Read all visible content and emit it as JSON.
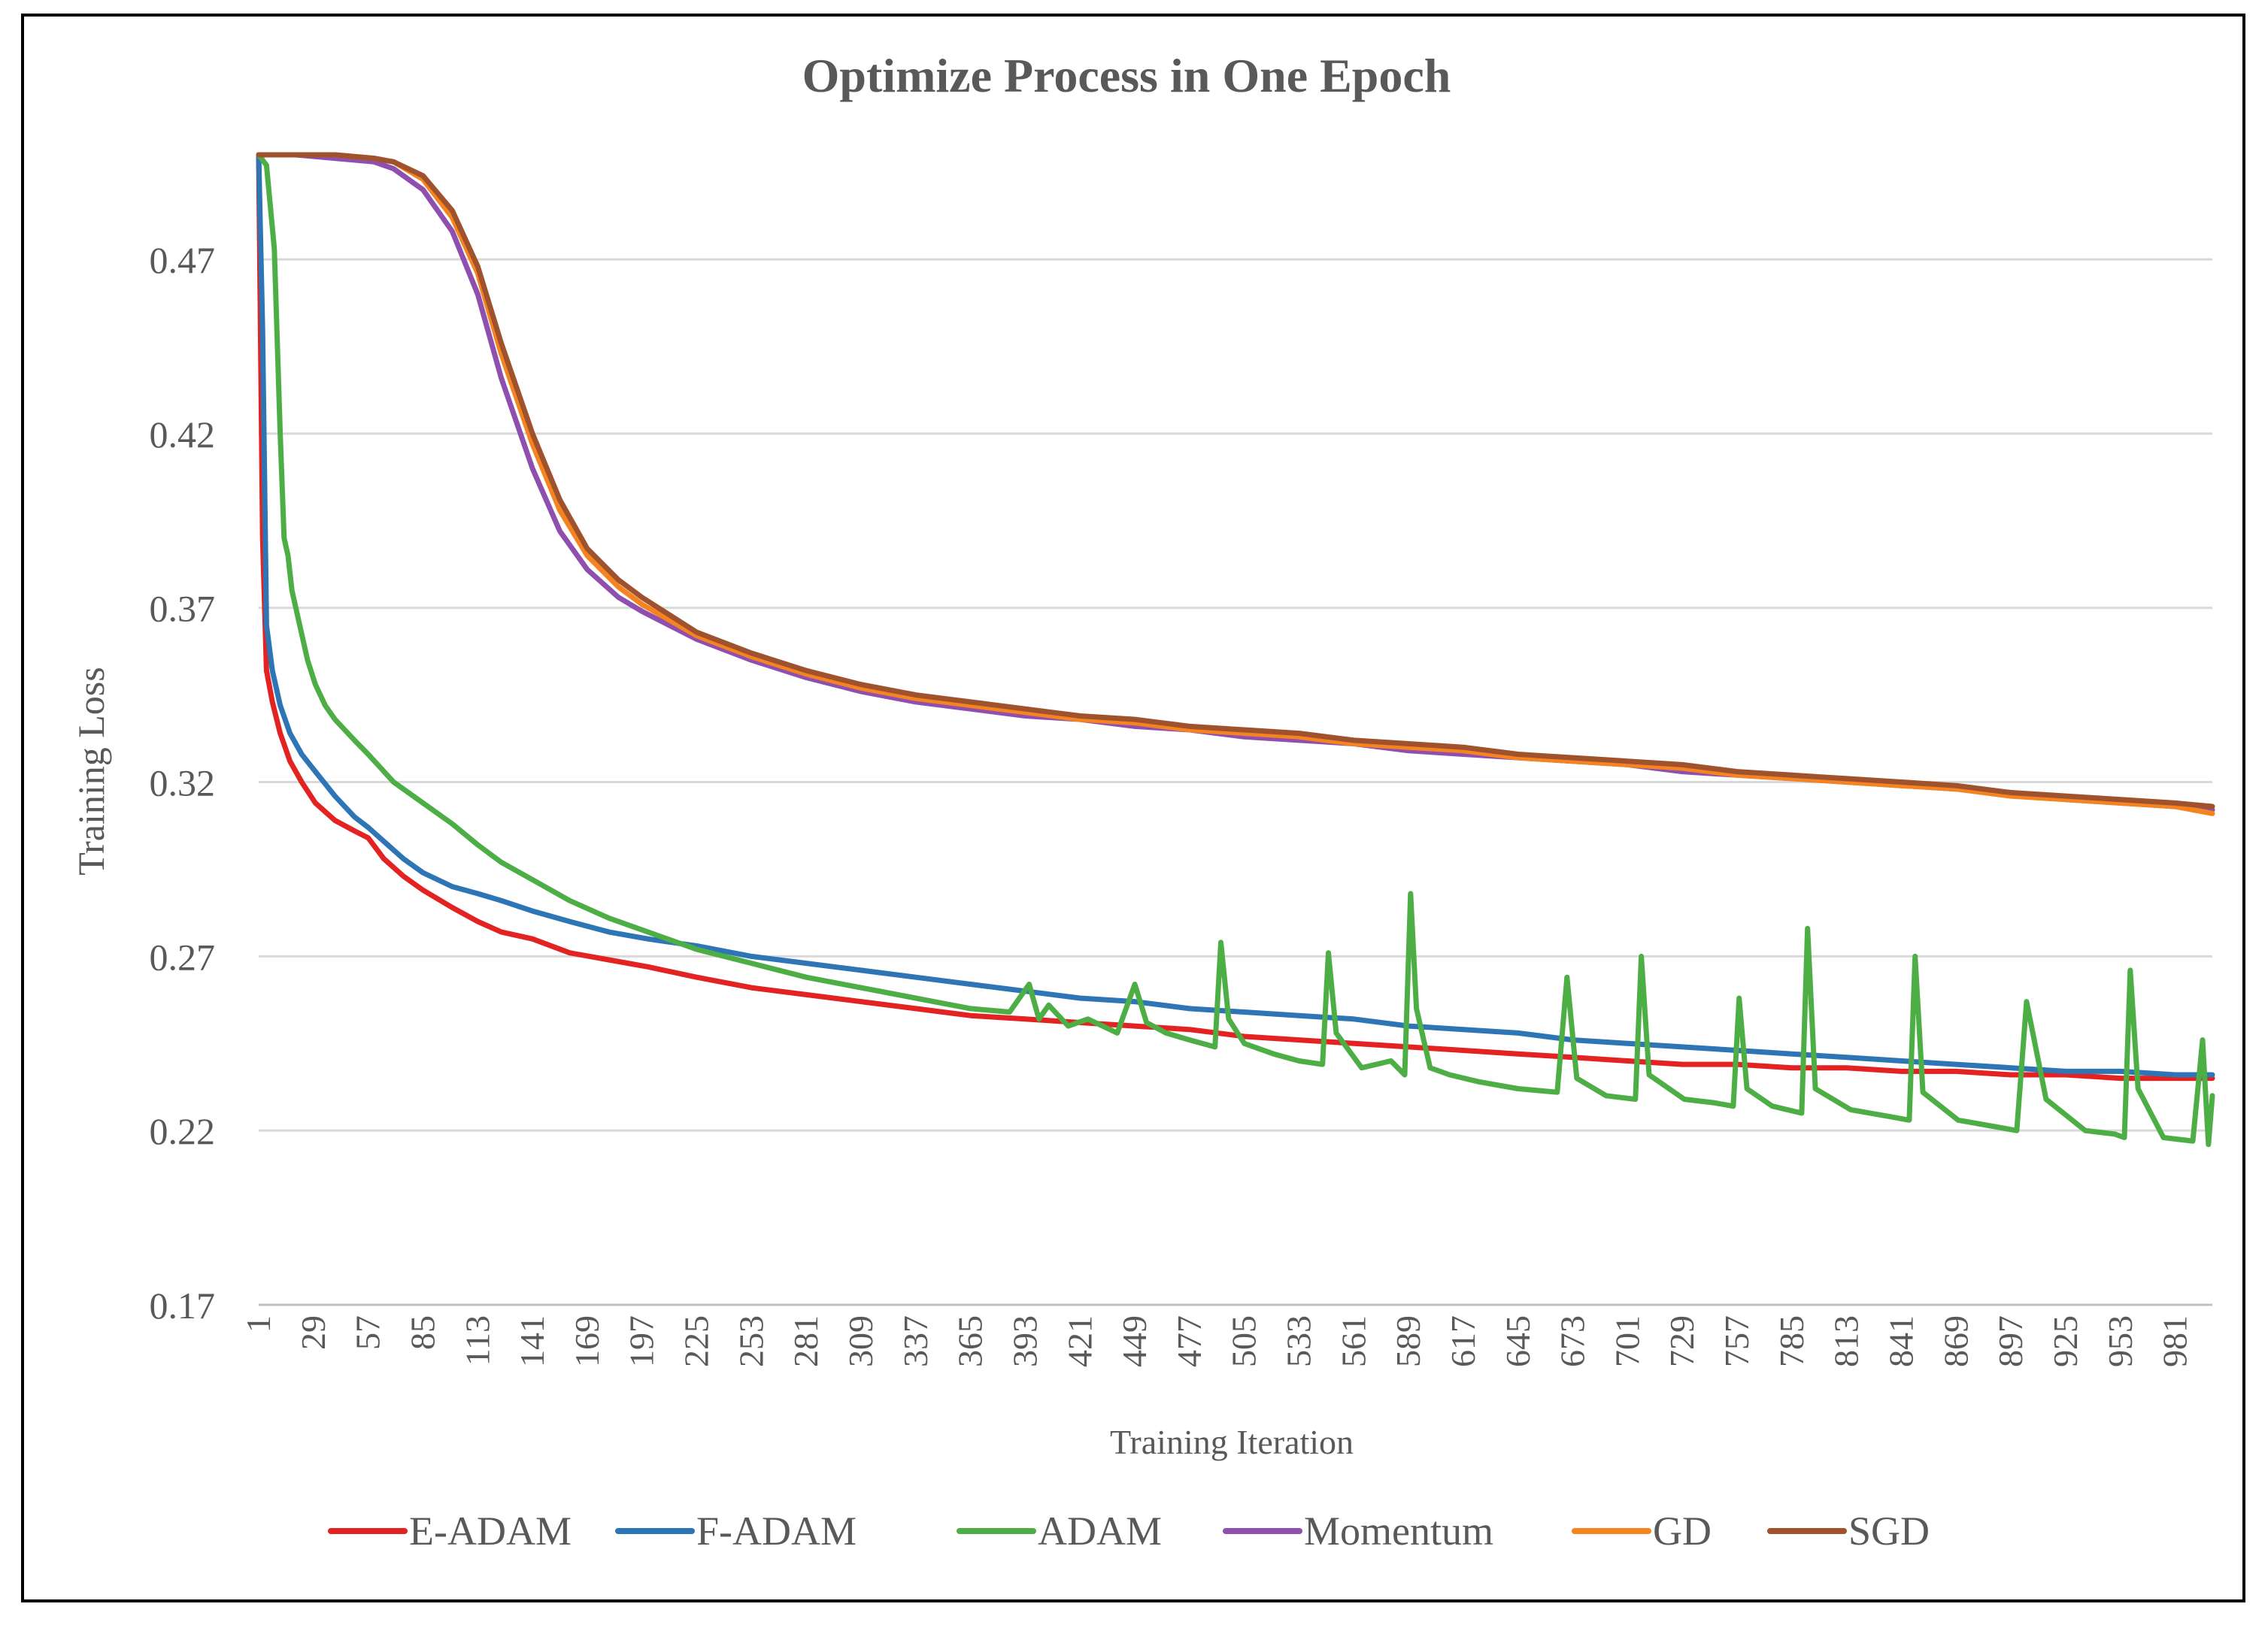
{
  "chart_data": {
    "type": "line",
    "title": "Optimize Process in One Epoch",
    "xlabel": "Training Iteration",
    "ylabel": "Training Loss",
    "ylim": [
      0.17,
      0.5
    ],
    "yticks": [
      "0.47",
      "0.42",
      "0.37",
      "0.32",
      "0.27",
      "0.22",
      "0.17"
    ],
    "xlim": [
      1,
      1000
    ],
    "xticks": [
      "1",
      "29",
      "57",
      "85",
      "113",
      "141",
      "169",
      "197",
      "225",
      "253",
      "281",
      "309",
      "337",
      "365",
      "393",
      "421",
      "449",
      "477",
      "505",
      "533",
      "561",
      "589",
      "617",
      "645",
      "673",
      "701",
      "729",
      "757",
      "785",
      "813",
      "841",
      "869",
      "897",
      "925",
      "953",
      "981"
    ],
    "legend_position": "bottom",
    "series": [
      {
        "name": "E-ADAM",
        "color": "#e32222",
        "x": [
          1,
          3,
          5,
          8,
          12,
          17,
          23,
          30,
          40,
          50,
          57,
          65,
          75,
          85,
          100,
          113,
          125,
          141,
          160,
          180,
          200,
          225,
          253,
          281,
          309,
          337,
          365,
          393,
          421,
          449,
          477,
          505,
          533,
          561,
          589,
          617,
          645,
          673,
          701,
          729,
          757,
          785,
          813,
          841,
          869,
          897,
          925,
          953,
          981,
          1000
        ],
        "y": [
          0.5,
          0.39,
          0.352,
          0.343,
          0.334,
          0.326,
          0.32,
          0.314,
          0.309,
          0.306,
          0.304,
          0.298,
          0.293,
          0.289,
          0.284,
          0.28,
          0.277,
          0.275,
          0.271,
          0.269,
          0.267,
          0.264,
          0.261,
          0.259,
          0.257,
          0.255,
          0.253,
          0.252,
          0.251,
          0.25,
          0.249,
          0.247,
          0.246,
          0.245,
          0.244,
          0.243,
          0.242,
          0.241,
          0.24,
          0.239,
          0.239,
          0.238,
          0.238,
          0.237,
          0.237,
          0.236,
          0.236,
          0.235,
          0.235,
          0.235
        ]
      },
      {
        "name": "F-ADAM",
        "color": "#2e75b6",
        "x": [
          1,
          3,
          5,
          8,
          12,
          17,
          23,
          30,
          40,
          50,
          57,
          65,
          75,
          85,
          100,
          113,
          125,
          141,
          160,
          180,
          200,
          225,
          253,
          281,
          309,
          337,
          365,
          393,
          421,
          449,
          477,
          505,
          533,
          561,
          589,
          617,
          645,
          673,
          701,
          729,
          757,
          785,
          813,
          841,
          869,
          897,
          925,
          953,
          981,
          1000
        ],
        "y": [
          0.5,
          0.45,
          0.365,
          0.352,
          0.342,
          0.334,
          0.328,
          0.323,
          0.316,
          0.31,
          0.307,
          0.303,
          0.298,
          0.294,
          0.29,
          0.288,
          0.286,
          0.283,
          0.28,
          0.277,
          0.275,
          0.273,
          0.27,
          0.268,
          0.266,
          0.264,
          0.262,
          0.26,
          0.258,
          0.257,
          0.255,
          0.254,
          0.253,
          0.252,
          0.25,
          0.249,
          0.248,
          0.246,
          0.245,
          0.244,
          0.243,
          0.242,
          0.241,
          0.24,
          0.239,
          0.238,
          0.237,
          0.237,
          0.236,
          0.236
        ]
      },
      {
        "name": "ADAM",
        "color": "#4eae46",
        "x": [
          1,
          5,
          9,
          12,
          14,
          16,
          18,
          22,
          26,
          30,
          35,
          40,
          50,
          57,
          70,
          85,
          100,
          113,
          125,
          141,
          160,
          180,
          200,
          225,
          253,
          281,
          309,
          337,
          365,
          385,
          395,
          400,
          405,
          415,
          425,
          440,
          449,
          455,
          465,
          477,
          490,
          493,
          497,
          505,
          520,
          533,
          545,
          548,
          552,
          565,
          580,
          587,
          590,
          593,
          600,
          610,
          625,
          645,
          665,
          670,
          675,
          690,
          705,
          708,
          712,
          730,
          745,
          755,
          758,
          762,
          775,
          790,
          793,
          797,
          815,
          835,
          845,
          848,
          852,
          870,
          890,
          900,
          905,
          915,
          935,
          950,
          955,
          958,
          962,
          975,
          990,
          995,
          998,
          1000
        ],
        "y": [
          0.5,
          0.497,
          0.473,
          0.42,
          0.39,
          0.385,
          0.375,
          0.365,
          0.355,
          0.348,
          0.342,
          0.338,
          0.332,
          0.328,
          0.32,
          0.314,
          0.308,
          0.302,
          0.297,
          0.292,
          0.286,
          0.281,
          0.277,
          0.272,
          0.268,
          0.264,
          0.261,
          0.258,
          0.255,
          0.254,
          0.262,
          0.252,
          0.256,
          0.25,
          0.252,
          0.248,
          0.262,
          0.251,
          0.248,
          0.246,
          0.244,
          0.274,
          0.252,
          0.245,
          0.242,
          0.24,
          0.239,
          0.271,
          0.248,
          0.238,
          0.24,
          0.236,
          0.288,
          0.255,
          0.238,
          0.236,
          0.234,
          0.232,
          0.231,
          0.264,
          0.235,
          0.23,
          0.229,
          0.27,
          0.236,
          0.229,
          0.228,
          0.227,
          0.258,
          0.232,
          0.227,
          0.225,
          0.278,
          0.232,
          0.226,
          0.224,
          0.223,
          0.27,
          0.231,
          0.223,
          0.221,
          0.22,
          0.257,
          0.229,
          0.22,
          0.219,
          0.218,
          0.266,
          0.232,
          0.218,
          0.217,
          0.246,
          0.216,
          0.23
        ]
      },
      {
        "name": "Momentum",
        "color": "#8e4fae",
        "x": [
          1,
          20,
          40,
          60,
          70,
          85,
          100,
          113,
          125,
          141,
          155,
          169,
          185,
          197,
          225,
          253,
          281,
          309,
          337,
          365,
          393,
          421,
          449,
          477,
          505,
          533,
          561,
          589,
          617,
          645,
          673,
          701,
          729,
          757,
          785,
          813,
          841,
          869,
          897,
          925,
          953,
          981,
          1000
        ],
        "y": [
          0.5,
          0.5,
          0.499,
          0.498,
          0.496,
          0.49,
          0.478,
          0.46,
          0.436,
          0.41,
          0.392,
          0.381,
          0.373,
          0.369,
          0.361,
          0.355,
          0.35,
          0.346,
          0.343,
          0.341,
          0.339,
          0.338,
          0.336,
          0.335,
          0.333,
          0.332,
          0.331,
          0.329,
          0.328,
          0.327,
          0.326,
          0.325,
          0.323,
          0.322,
          0.321,
          0.32,
          0.319,
          0.318,
          0.317,
          0.315,
          0.314,
          0.313,
          0.312
        ]
      },
      {
        "name": "GD",
        "color": "#f5831f",
        "x": [
          1,
          20,
          40,
          60,
          70,
          85,
          100,
          113,
          125,
          141,
          155,
          169,
          185,
          197,
          225,
          253,
          281,
          309,
          337,
          365,
          393,
          421,
          449,
          477,
          505,
          533,
          561,
          589,
          617,
          645,
          673,
          701,
          729,
          757,
          785,
          813,
          841,
          869,
          897,
          925,
          953,
          981,
          1000
        ],
        "y": [
          0.5,
          0.5,
          0.5,
          0.499,
          0.498,
          0.493,
          0.482,
          0.466,
          0.443,
          0.417,
          0.398,
          0.385,
          0.376,
          0.371,
          0.362,
          0.356,
          0.351,
          0.347,
          0.344,
          0.342,
          0.34,
          0.338,
          0.337,
          0.335,
          0.334,
          0.333,
          0.331,
          0.33,
          0.329,
          0.327,
          0.326,
          0.325,
          0.324,
          0.322,
          0.321,
          0.32,
          0.319,
          0.318,
          0.316,
          0.315,
          0.314,
          0.313,
          0.311
        ]
      },
      {
        "name": "SGD",
        "color": "#a0522d",
        "x": [
          1,
          20,
          40,
          60,
          70,
          85,
          100,
          113,
          125,
          141,
          155,
          169,
          185,
          197,
          225,
          253,
          281,
          309,
          337,
          365,
          393,
          421,
          449,
          477,
          505,
          533,
          561,
          589,
          617,
          645,
          673,
          701,
          729,
          757,
          785,
          813,
          841,
          869,
          897,
          925,
          953,
          981,
          1000
        ],
        "y": [
          0.5,
          0.5,
          0.5,
          0.499,
          0.498,
          0.494,
          0.484,
          0.468,
          0.446,
          0.42,
          0.401,
          0.387,
          0.378,
          0.373,
          0.363,
          0.357,
          0.352,
          0.348,
          0.345,
          0.343,
          0.341,
          0.339,
          0.338,
          0.336,
          0.335,
          0.334,
          0.332,
          0.331,
          0.33,
          0.328,
          0.327,
          0.326,
          0.325,
          0.323,
          0.322,
          0.321,
          0.32,
          0.319,
          0.317,
          0.316,
          0.315,
          0.314,
          0.313
        ]
      }
    ]
  }
}
